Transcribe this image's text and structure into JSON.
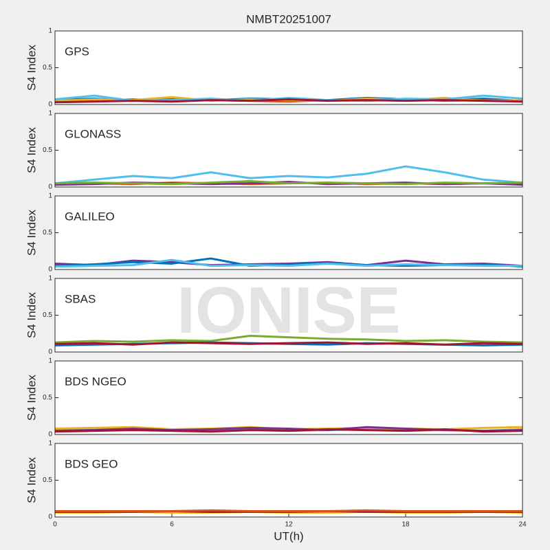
{
  "watermark": "IONISE",
  "chart_data": [
    {
      "type": "line",
      "title": "NMBT20251007",
      "annotation": "GPS",
      "ylabel": "S4 Index",
      "xlim": [
        0,
        24
      ],
      "ylim": [
        0,
        1
      ],
      "yticks": [
        0,
        0.5,
        1
      ],
      "x": [
        0,
        2,
        4,
        6,
        8,
        10,
        12,
        14,
        16,
        18,
        20,
        22,
        24
      ],
      "series": [
        {
          "color": "#0072BD",
          "values": [
            0.06,
            0.08,
            0.05,
            0.07,
            0.06,
            0.08,
            0.07,
            0.06,
            0.09,
            0.07,
            0.06,
            0.08,
            0.05
          ]
        },
        {
          "color": "#D95319",
          "values": [
            0.04,
            0.05,
            0.07,
            0.05,
            0.06,
            0.05,
            0.04,
            0.06,
            0.05,
            0.07,
            0.05,
            0.06,
            0.04
          ]
        },
        {
          "color": "#EDB120",
          "values": [
            0.05,
            0.07,
            0.06,
            0.1,
            0.05,
            0.07,
            0.06,
            0.05,
            0.08,
            0.06,
            0.09,
            0.05,
            0.06
          ]
        },
        {
          "color": "#4DBEEE",
          "values": [
            0.07,
            0.12,
            0.05,
            0.06,
            0.08,
            0.05,
            0.09,
            0.06,
            0.05,
            0.08,
            0.07,
            0.12,
            0.08
          ]
        },
        {
          "color": "#A2142F",
          "values": [
            0.03,
            0.04,
            0.05,
            0.04,
            0.06,
            0.05,
            0.07,
            0.05,
            0.06,
            0.05,
            0.06,
            0.05,
            0.04
          ]
        }
      ]
    },
    {
      "type": "line",
      "annotation": "GLONASS",
      "ylabel": "S4 Index",
      "xlim": [
        0,
        24
      ],
      "ylim": [
        0,
        1
      ],
      "yticks": [
        0,
        0.5,
        1
      ],
      "x": [
        0,
        2,
        4,
        6,
        8,
        10,
        12,
        14,
        16,
        18,
        20,
        22,
        24
      ],
      "series": [
        {
          "color": "#4DBEEE",
          "values": [
            0.05,
            0.1,
            0.15,
            0.12,
            0.2,
            0.12,
            0.15,
            0.13,
            0.18,
            0.28,
            0.2,
            0.1,
            0.06
          ]
        },
        {
          "color": "#D95319",
          "values": [
            0.04,
            0.05,
            0.04,
            0.06,
            0.05,
            0.04,
            0.05,
            0.06,
            0.04,
            0.05,
            0.04,
            0.05,
            0.04
          ]
        },
        {
          "color": "#7E2F8E",
          "values": [
            0.03,
            0.04,
            0.06,
            0.05,
            0.04,
            0.05,
            0.07,
            0.04,
            0.05,
            0.06,
            0.04,
            0.05,
            0.03
          ]
        },
        {
          "color": "#77AC30",
          "values": [
            0.05,
            0.06,
            0.05,
            0.04,
            0.06,
            0.08,
            0.05,
            0.06,
            0.05,
            0.04,
            0.06,
            0.05,
            0.06
          ]
        }
      ]
    },
    {
      "type": "line",
      "annotation": "GALILEO",
      "ylabel": "S4 Index",
      "xlim": [
        0,
        24
      ],
      "ylim": [
        0,
        1
      ],
      "yticks": [
        0,
        0.5,
        1
      ],
      "x": [
        0,
        2,
        4,
        6,
        8,
        10,
        12,
        14,
        16,
        18,
        20,
        22,
        24
      ],
      "series": [
        {
          "color": "#7E2F8E",
          "values": [
            0.08,
            0.06,
            0.12,
            0.1,
            0.06,
            0.07,
            0.08,
            0.1,
            0.06,
            0.12,
            0.07,
            0.08,
            0.05
          ]
        },
        {
          "color": "#0072BD",
          "values": [
            0.05,
            0.07,
            0.1,
            0.08,
            0.15,
            0.05,
            0.07,
            0.09,
            0.06,
            0.05,
            0.06,
            0.07,
            0.04
          ]
        },
        {
          "color": "#4DBEEE",
          "values": [
            0.04,
            0.05,
            0.06,
            0.13,
            0.05,
            0.06,
            0.05,
            0.08,
            0.05,
            0.07,
            0.06,
            0.05,
            0.05
          ]
        }
      ]
    },
    {
      "type": "line",
      "annotation": "SBAS",
      "ylabel": "S4 Index",
      "xlim": [
        0,
        24
      ],
      "ylim": [
        0,
        1
      ],
      "yticks": [
        0,
        0.5,
        1
      ],
      "x": [
        0,
        2,
        4,
        6,
        8,
        10,
        12,
        14,
        16,
        18,
        20,
        22,
        24
      ],
      "series": [
        {
          "color": "#77AC30",
          "values": [
            0.13,
            0.15,
            0.14,
            0.16,
            0.15,
            0.22,
            0.2,
            0.18,
            0.17,
            0.15,
            0.16,
            0.14,
            0.13
          ]
        },
        {
          "color": "#0072BD",
          "values": [
            0.09,
            0.1,
            0.11,
            0.12,
            0.13,
            0.12,
            0.11,
            0.1,
            0.12,
            0.11,
            0.1,
            0.09,
            0.1
          ]
        },
        {
          "color": "#A2142F",
          "values": [
            0.11,
            0.12,
            0.1,
            0.13,
            0.12,
            0.11,
            0.12,
            0.13,
            0.11,
            0.12,
            0.1,
            0.12,
            0.11
          ]
        }
      ]
    },
    {
      "type": "line",
      "annotation": "BDS NGEO",
      "ylabel": "S4 Index",
      "xlim": [
        0,
        24
      ],
      "ylim": [
        0,
        1
      ],
      "yticks": [
        0,
        0.5,
        1
      ],
      "x": [
        0,
        2,
        4,
        6,
        8,
        10,
        12,
        14,
        16,
        18,
        20,
        22,
        24
      ],
      "series": [
        {
          "color": "#4DBEEE",
          "values": [
            0.06,
            0.08,
            0.07,
            0.05,
            0.06,
            0.07,
            0.05,
            0.06,
            0.07,
            0.05,
            0.06,
            0.05,
            0.07
          ]
        },
        {
          "color": "#EDB120",
          "values": [
            0.08,
            0.09,
            0.1,
            0.07,
            0.08,
            0.1,
            0.07,
            0.08,
            0.09,
            0.08,
            0.07,
            0.09,
            0.1
          ]
        },
        {
          "color": "#7E2F8E",
          "values": [
            0.05,
            0.06,
            0.08,
            0.06,
            0.07,
            0.09,
            0.08,
            0.06,
            0.1,
            0.08,
            0.06,
            0.05,
            0.06
          ]
        },
        {
          "color": "#A2142F",
          "values": [
            0.04,
            0.05,
            0.06,
            0.05,
            0.04,
            0.06,
            0.05,
            0.07,
            0.06,
            0.05,
            0.07,
            0.04,
            0.05
          ]
        }
      ]
    },
    {
      "type": "line",
      "annotation": "BDS GEO",
      "ylabel": "S4 Index",
      "xlabel": "UT(h)",
      "xlim": [
        0,
        24
      ],
      "ylim": [
        0,
        1
      ],
      "yticks": [
        0,
        0.5,
        1
      ],
      "xticks": [
        0,
        6,
        12,
        18,
        24
      ],
      "x": [
        0,
        2,
        4,
        6,
        8,
        10,
        12,
        14,
        16,
        18,
        20,
        22,
        24
      ],
      "series": [
        {
          "color": "#EDB120",
          "values": [
            0.06,
            0.06,
            0.07,
            0.06,
            0.06,
            0.07,
            0.06,
            0.06,
            0.07,
            0.06,
            0.06,
            0.07,
            0.06
          ]
        },
        {
          "color": "#A2142F",
          "values": [
            0.07,
            0.07,
            0.07,
            0.08,
            0.07,
            0.07,
            0.07,
            0.08,
            0.07,
            0.07,
            0.07,
            0.07,
            0.07
          ]
        },
        {
          "color": "#D95319",
          "values": [
            0.08,
            0.08,
            0.08,
            0.08,
            0.09,
            0.08,
            0.08,
            0.08,
            0.09,
            0.08,
            0.08,
            0.08,
            0.08
          ]
        }
      ]
    }
  ]
}
